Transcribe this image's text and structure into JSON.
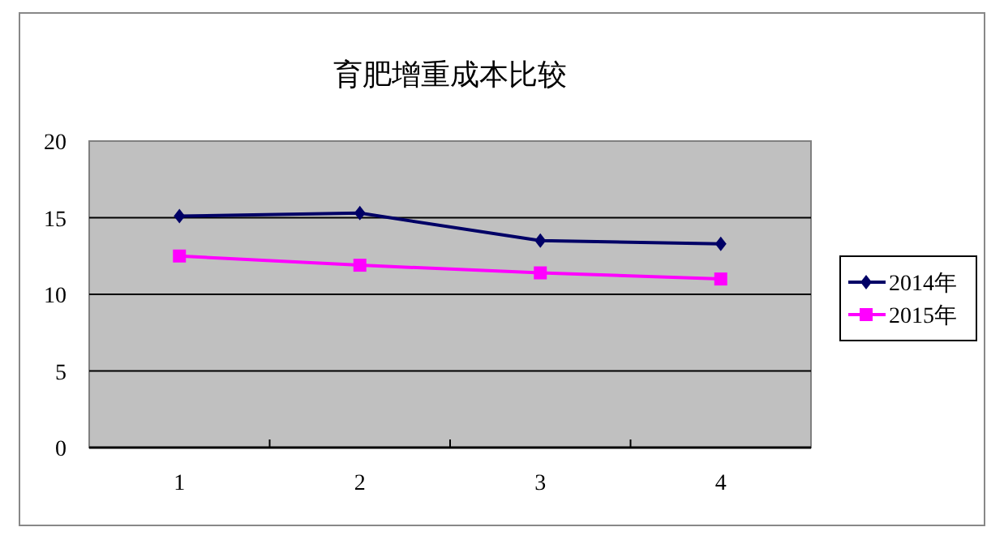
{
  "chart_data": {
    "type": "line",
    "title": "育肥增重成本比较",
    "categories": [
      "1",
      "2",
      "3",
      "4"
    ],
    "series": [
      {
        "name": "2014年",
        "color": "#000066",
        "marker": "diamond",
        "values": [
          15.1,
          15.3,
          13.5,
          13.3
        ]
      },
      {
        "name": "2015年",
        "color": "#ff00ff",
        "marker": "square",
        "values": [
          12.5,
          11.9,
          11.4,
          11.0
        ]
      }
    ],
    "ylim": [
      0,
      20
    ],
    "yticks": [
      0,
      5,
      10,
      15,
      20
    ],
    "grid": "y",
    "legend": "right"
  }
}
